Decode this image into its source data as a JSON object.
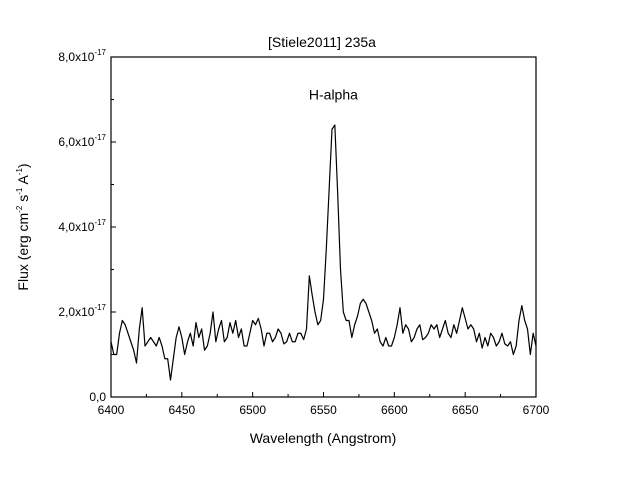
{
  "chart_data": {
    "type": "line",
    "title": "[Stiele2011] 235a",
    "xlabel": "Wavelength (Angstrom)",
    "ylabel": {
      "prefix": "Flux (erg cm",
      "sup1": "-2",
      "mid1": " s",
      "sup2": "-1",
      "mid2": " A",
      "sup3": "-1",
      "suffix": ")"
    },
    "xlim": [
      6400,
      6700
    ],
    "ylim": [
      0,
      8e-17
    ],
    "x_ticks": [
      {
        "value": 6400,
        "label": "6400"
      },
      {
        "value": 6450,
        "label": "6450"
      },
      {
        "value": 6500,
        "label": "6500"
      },
      {
        "value": 6550,
        "label": "6550"
      },
      {
        "value": 6600,
        "label": "6600"
      },
      {
        "value": 6650,
        "label": "6650"
      },
      {
        "value": 6700,
        "label": "6700"
      }
    ],
    "y_ticks": [
      {
        "value": 0,
        "label": "0,0",
        "exp": ""
      },
      {
        "value": 2e-17,
        "label": "2,0x10",
        "exp": "-17"
      },
      {
        "value": 4e-17,
        "label": "4,0x10",
        "exp": "-17"
      },
      {
        "value": 6e-17,
        "label": "6,0x10",
        "exp": "-17"
      },
      {
        "value": 8e-17,
        "label": "8,0x10",
        "exp": "-17"
      }
    ],
    "grid": false,
    "annotations": [
      {
        "text": "H-alpha",
        "x": 6557,
        "y": 7e-17
      }
    ],
    "series": [
      {
        "color": "#000000",
        "points": [
          [
            6400,
            1.3e-17
          ],
          [
            6402,
            1e-17
          ],
          [
            6404,
            1e-17
          ],
          [
            6406,
            1.5e-17
          ],
          [
            6408,
            1.8e-17
          ],
          [
            6410,
            1.7e-17
          ],
          [
            6412,
            1.5e-17
          ],
          [
            6414,
            1.3e-17
          ],
          [
            6416,
            1.1e-17
          ],
          [
            6418,
            8e-18
          ],
          [
            6420,
            1.6e-17
          ],
          [
            6422,
            2.1e-17
          ],
          [
            6424,
            1.2e-17
          ],
          [
            6426,
            1.3e-17
          ],
          [
            6428,
            1.4e-17
          ],
          [
            6430,
            1.3e-17
          ],
          [
            6432,
            1.2e-17
          ],
          [
            6434,
            1.4e-17
          ],
          [
            6436,
            1.2e-17
          ],
          [
            6438,
            9e-18
          ],
          [
            6440,
            9e-18
          ],
          [
            6442,
            4e-18
          ],
          [
            6444,
            9e-18
          ],
          [
            6446,
            1.4e-17
          ],
          [
            6448,
            1.65e-17
          ],
          [
            6450,
            1.4e-17
          ],
          [
            6452,
            1e-17
          ],
          [
            6454,
            1.3e-17
          ],
          [
            6456,
            1.5e-17
          ],
          [
            6458,
            1.2e-17
          ],
          [
            6460,
            1.75e-17
          ],
          [
            6462,
            1.4e-17
          ],
          [
            6464,
            1.6e-17
          ],
          [
            6466,
            1.1e-17
          ],
          [
            6468,
            1.2e-17
          ],
          [
            6470,
            1.5e-17
          ],
          [
            6472,
            2e-17
          ],
          [
            6474,
            1.3e-17
          ],
          [
            6476,
            1.6e-17
          ],
          [
            6478,
            1.8e-17
          ],
          [
            6480,
            1.3e-17
          ],
          [
            6482,
            1.4e-17
          ],
          [
            6484,
            1.75e-17
          ],
          [
            6486,
            1.5e-17
          ],
          [
            6488,
            1.8e-17
          ],
          [
            6490,
            1.4e-17
          ],
          [
            6492,
            1.6e-17
          ],
          [
            6494,
            1.2e-17
          ],
          [
            6496,
            1.2e-17
          ],
          [
            6498,
            1.5e-17
          ],
          [
            6500,
            1.8e-17
          ],
          [
            6502,
            1.7e-17
          ],
          [
            6504,
            1.85e-17
          ],
          [
            6506,
            1.6e-17
          ],
          [
            6508,
            1.2e-17
          ],
          [
            6510,
            1.5e-17
          ],
          [
            6512,
            1.5e-17
          ],
          [
            6514,
            1.3e-17
          ],
          [
            6516,
            1.4e-17
          ],
          [
            6518,
            1.6e-17
          ],
          [
            6520,
            1.5e-17
          ],
          [
            6522,
            1.25e-17
          ],
          [
            6524,
            1.3e-17
          ],
          [
            6526,
            1.5e-17
          ],
          [
            6528,
            1.3e-17
          ],
          [
            6530,
            1.3e-17
          ],
          [
            6532,
            1.5e-17
          ],
          [
            6534,
            1.5e-17
          ],
          [
            6536,
            1.35e-17
          ],
          [
            6538,
            1.6e-17
          ],
          [
            6540,
            2.85e-17
          ],
          [
            6542,
            2.4e-17
          ],
          [
            6544,
            2e-17
          ],
          [
            6546,
            1.7e-17
          ],
          [
            6548,
            1.8e-17
          ],
          [
            6550,
            2.3e-17
          ],
          [
            6552,
            3.5e-17
          ],
          [
            6554,
            4.9e-17
          ],
          [
            6556,
            6.3e-17
          ],
          [
            6558,
            6.4e-17
          ],
          [
            6560,
            4.8e-17
          ],
          [
            6562,
            3e-17
          ],
          [
            6564,
            2e-17
          ],
          [
            6566,
            1.8e-17
          ],
          [
            6568,
            1.8e-17
          ],
          [
            6570,
            1.4e-17
          ],
          [
            6572,
            1.7e-17
          ],
          [
            6574,
            1.9e-17
          ],
          [
            6576,
            2.2e-17
          ],
          [
            6578,
            2.3e-17
          ],
          [
            6580,
            2.2e-17
          ],
          [
            6582,
            2e-17
          ],
          [
            6584,
            1.8e-17
          ],
          [
            6586,
            1.5e-17
          ],
          [
            6588,
            1.6e-17
          ],
          [
            6590,
            1.3e-17
          ],
          [
            6592,
            1.2e-17
          ],
          [
            6594,
            1.4e-17
          ],
          [
            6596,
            1.2e-17
          ],
          [
            6598,
            1.2e-17
          ],
          [
            6600,
            1.4e-17
          ],
          [
            6602,
            1.7e-17
          ],
          [
            6604,
            2.1e-17
          ],
          [
            6606,
            1.5e-17
          ],
          [
            6608,
            1.7e-17
          ],
          [
            6610,
            1.6e-17
          ],
          [
            6612,
            1.3e-17
          ],
          [
            6614,
            1.4e-17
          ],
          [
            6616,
            1.6e-17
          ],
          [
            6618,
            1.7e-17
          ],
          [
            6620,
            1.35e-17
          ],
          [
            6622,
            1.4e-17
          ],
          [
            6624,
            1.5e-17
          ],
          [
            6626,
            1.7e-17
          ],
          [
            6628,
            1.6e-17
          ],
          [
            6630,
            1.7e-17
          ],
          [
            6632,
            1.4e-17
          ],
          [
            6634,
            1.6e-17
          ],
          [
            6636,
            1.8e-17
          ],
          [
            6638,
            1.5e-17
          ],
          [
            6640,
            1.4e-17
          ],
          [
            6642,
            1.7e-17
          ],
          [
            6644,
            1.5e-17
          ],
          [
            6646,
            1.8e-17
          ],
          [
            6648,
            2.1e-17
          ],
          [
            6650,
            1.85e-17
          ],
          [
            6652,
            1.6e-17
          ],
          [
            6654,
            1.7e-17
          ],
          [
            6656,
            1.6e-17
          ],
          [
            6658,
            1.3e-17
          ],
          [
            6660,
            1.5e-17
          ],
          [
            6662,
            1.15e-17
          ],
          [
            6664,
            1.4e-17
          ],
          [
            6666,
            1.2e-17
          ],
          [
            6668,
            1.5e-17
          ],
          [
            6670,
            1.4e-17
          ],
          [
            6672,
            1.2e-17
          ],
          [
            6674,
            1.3e-17
          ],
          [
            6676,
            1.5e-17
          ],
          [
            6678,
            1.25e-17
          ],
          [
            6680,
            1.2e-17
          ],
          [
            6682,
            1.3e-17
          ],
          [
            6684,
            1e-17
          ],
          [
            6686,
            1.2e-17
          ],
          [
            6688,
            1.8e-17
          ],
          [
            6690,
            2.15e-17
          ],
          [
            6692,
            1.8e-17
          ],
          [
            6694,
            1.6e-17
          ],
          [
            6696,
            1e-17
          ],
          [
            6698,
            1.5e-17
          ],
          [
            6700,
            1.2e-17
          ]
        ]
      }
    ]
  }
}
